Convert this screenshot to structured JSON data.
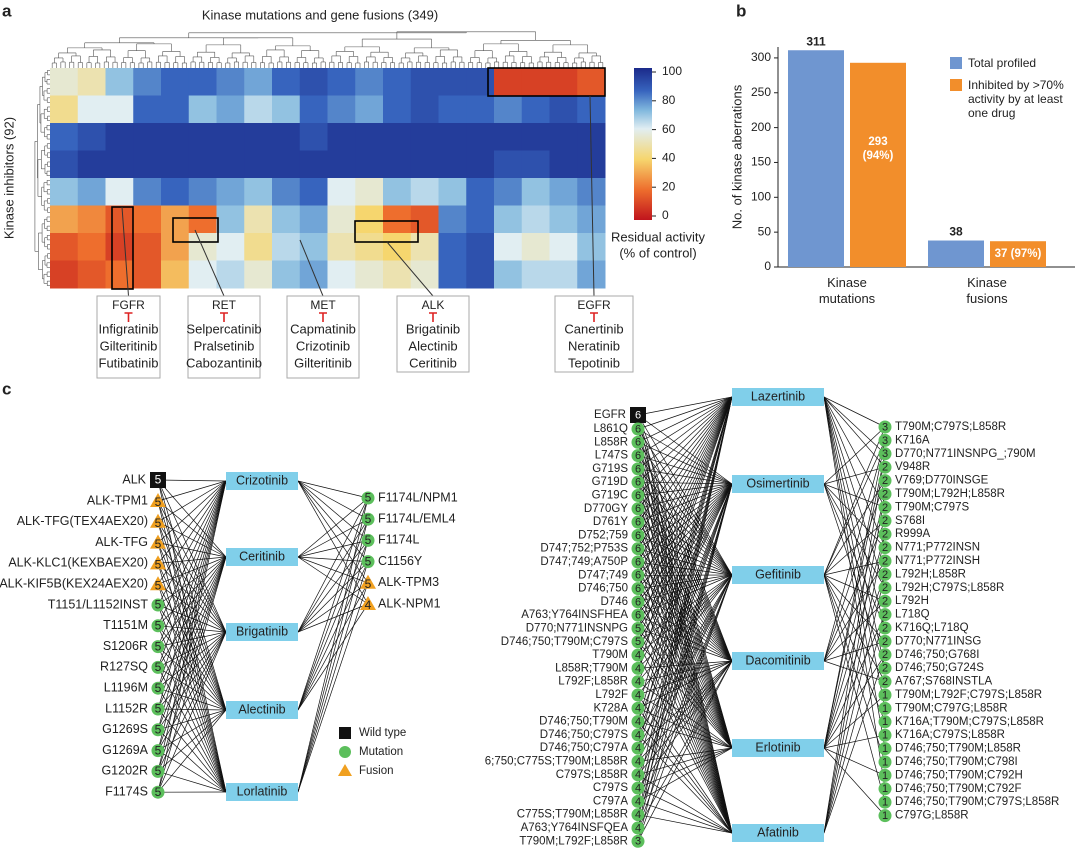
{
  "panel_labels": [
    "a",
    "b",
    "c"
  ],
  "heatmap": {
    "title": "Kinase mutations and gene fusions (349)",
    "y_label": "Kinase inhibitors (92)",
    "colorbar_lim": [
      0,
      100
    ],
    "colorbar_ticks": [
      0,
      20,
      40,
      60,
      80,
      100
    ],
    "colorbar_label": [
      "Residual activity",
      "(% of control)"
    ],
    "values": [
      [
        55,
        50,
        70,
        80,
        85,
        85,
        80,
        75,
        85,
        90,
        85,
        80,
        85,
        90,
        90,
        90,
        10,
        10,
        10,
        15
      ],
      [
        45,
        60,
        60,
        85,
        85,
        70,
        75,
        65,
        70,
        85,
        80,
        75,
        85,
        90,
        85,
        85,
        80,
        85,
        90,
        85
      ],
      [
        85,
        90,
        95,
        95,
        95,
        95,
        95,
        95,
        95,
        90,
        95,
        95,
        95,
        95,
        95,
        95,
        95,
        95,
        95,
        95
      ],
      [
        90,
        95,
        95,
        95,
        95,
        95,
        95,
        95,
        95,
        95,
        95,
        95,
        95,
        95,
        95,
        95,
        90,
        90,
        95,
        95
      ],
      [
        70,
        75,
        60,
        80,
        85,
        80,
        75,
        70,
        80,
        85,
        60,
        55,
        70,
        65,
        70,
        85,
        80,
        70,
        75,
        80
      ],
      [
        30,
        25,
        15,
        20,
        30,
        20,
        70,
        50,
        70,
        75,
        55,
        40,
        20,
        15,
        80,
        85,
        70,
        65,
        70,
        75
      ],
      [
        15,
        20,
        10,
        15,
        30,
        55,
        60,
        45,
        65,
        70,
        50,
        45,
        40,
        50,
        85,
        90,
        60,
        55,
        60,
        70
      ],
      [
        10,
        15,
        20,
        15,
        35,
        60,
        65,
        55,
        70,
        75,
        60,
        55,
        50,
        55,
        85,
        90,
        70,
        65,
        65,
        75
      ]
    ],
    "callouts": [
      {
        "target": "FGFR",
        "drugs": [
          "Infigratinib",
          "Gilteritinib",
          "Futibatinib"
        ]
      },
      {
        "target": "RET",
        "drugs": [
          "Selpercatinib",
          "Pralsetinib",
          "Cabozantinib"
        ]
      },
      {
        "target": "MET",
        "drugs": [
          "Capmatinib",
          "Crizotinib",
          "Gilteritinib"
        ]
      },
      {
        "target": "ALK",
        "drugs": [
          "Brigatinib",
          "Alectinib",
          "Ceritinib"
        ]
      },
      {
        "target": "EGFR",
        "drugs": [
          "Canertinib",
          "Neratinib",
          "Tepotinib"
        ]
      }
    ]
  },
  "chart_data": {
    "type": "bar",
    "ylabel": "No. of kinase aberrations",
    "categories": [
      "Kinase mutations",
      "Kinase fusions"
    ],
    "series": [
      {
        "name": "Total profiled",
        "color": "#6f96d0",
        "values": [
          311,
          38
        ]
      },
      {
        "name": "Inhibited by >70% activity by at least one drug",
        "color": "#f28e2b",
        "values": [
          293,
          37
        ],
        "value_labels": [
          "293 (94%)",
          "37 (97%)"
        ]
      }
    ],
    "ylim": [
      0,
      330
    ],
    "yticks": [
      0,
      50,
      100,
      150,
      200,
      250,
      300
    ]
  },
  "legend": [
    "Wild type",
    "Mutation",
    "Fusion"
  ],
  "networks": [
    {
      "wild_type": {
        "label": "ALK",
        "count": 5
      },
      "left": [
        {
          "label": "ALK-TPM1",
          "type": "fusion",
          "count": 5
        },
        {
          "label": "ALK-TFG(TEX4AEX20)",
          "type": "fusion",
          "count": 5
        },
        {
          "label": "ALK-TFG",
          "type": "fusion",
          "count": 5
        },
        {
          "label": "ALK-KLC1(KEXBAEX20)",
          "type": "fusion",
          "count": 5
        },
        {
          "label": "ALK-KIF5B(KEX24AEX20)",
          "type": "fusion",
          "count": 5
        },
        {
          "label": "T1151/L1152INST",
          "type": "mutation",
          "count": 5
        },
        {
          "label": "T1151M",
          "type": "mutation",
          "count": 5
        },
        {
          "label": "S1206R",
          "type": "mutation",
          "count": 5
        },
        {
          "label": "R127SQ",
          "type": "mutation",
          "count": 5
        },
        {
          "label": "L1196M",
          "type": "mutation",
          "count": 5
        },
        {
          "label": "L1152R",
          "type": "mutation",
          "count": 5
        },
        {
          "label": "G1269S",
          "type": "mutation",
          "count": 5
        },
        {
          "label": "G1269A",
          "type": "mutation",
          "count": 5
        },
        {
          "label": "G1202R",
          "type": "mutation",
          "count": 5
        },
        {
          "label": "F1174S",
          "type": "mutation",
          "count": 5
        }
      ],
      "drugs": [
        "Crizotinib",
        "Ceritinib",
        "Brigatinib",
        "Alectinib",
        "Lorlatinib"
      ],
      "right": [
        {
          "label": "F1174L/NPM1",
          "type": "mutation",
          "count": 5
        },
        {
          "label": "F1174L/EML4",
          "type": "mutation",
          "count": 5
        },
        {
          "label": "F1174L",
          "type": "mutation",
          "count": 5
        },
        {
          "label": "C1156Y",
          "type": "mutation",
          "count": 5
        },
        {
          "label": "ALK-TPM3",
          "type": "fusion",
          "count": 5
        },
        {
          "label": "ALK-NPM1",
          "type": "fusion",
          "count": 4
        }
      ]
    },
    {
      "wild_type": {
        "label": "EGFR",
        "count": 6
      },
      "left": [
        {
          "label": "L861Q",
          "type": "mutation",
          "count": 6
        },
        {
          "label": "L858R",
          "type": "mutation",
          "count": 6
        },
        {
          "label": "L747S",
          "type": "mutation",
          "count": 6
        },
        {
          "label": "G719S",
          "type": "mutation",
          "count": 6
        },
        {
          "label": "G719D",
          "type": "mutation",
          "count": 6
        },
        {
          "label": "G719C",
          "type": "mutation",
          "count": 6
        },
        {
          "label": "D770GY",
          "type": "mutation",
          "count": 6
        },
        {
          "label": "D761Y",
          "type": "mutation",
          "count": 6
        },
        {
          "label": "D752;759",
          "type": "mutation",
          "count": 6
        },
        {
          "label": "D747;752;P753S",
          "type": "mutation",
          "count": 6
        },
        {
          "label": "D747;749;A750P",
          "type": "mutation",
          "count": 6
        },
        {
          "label": "D747;749",
          "type": "mutation",
          "count": 6
        },
        {
          "label": "D746;750",
          "type": "mutation",
          "count": 6
        },
        {
          "label": "D746",
          "type": "mutation",
          "count": 6
        },
        {
          "label": "A763;Y764INSFHEA",
          "type": "mutation",
          "count": 6
        },
        {
          "label": "D770;N771INSNPG",
          "type": "mutation",
          "count": 5
        },
        {
          "label": "D746;750;T790M;C797S",
          "type": "mutation",
          "count": 5
        },
        {
          "label": "T790M",
          "type": "mutation",
          "count": 4
        },
        {
          "label": "L858R;T790M",
          "type": "mutation",
          "count": 4
        },
        {
          "label": "L792F;L858R",
          "type": "mutation",
          "count": 4
        },
        {
          "label": "L792F",
          "type": "mutation",
          "count": 4
        },
        {
          "label": "K728A",
          "type": "mutation",
          "count": 4
        },
        {
          "label": "D746;750;T790M",
          "type": "mutation",
          "count": 4
        },
        {
          "label": "D746;750;C797S",
          "type": "mutation",
          "count": 4
        },
        {
          "label": "D746;750;C797A",
          "type": "mutation",
          "count": 4
        },
        {
          "label": "6;750;C775S;T790M;L858R",
          "type": "mutation",
          "count": 4
        },
        {
          "label": "C797S;L858R",
          "type": "mutation",
          "count": 4
        },
        {
          "label": "C797S",
          "type": "mutation",
          "count": 4
        },
        {
          "label": "C797A",
          "type": "mutation",
          "count": 4
        },
        {
          "label": "C775S;T790M;L858R",
          "type": "mutation",
          "count": 4
        },
        {
          "label": "A763;Y764INSFQEA",
          "type": "mutation",
          "count": 4
        },
        {
          "label": "T790M;L792F;L858R",
          "type": "mutation",
          "count": 3
        }
      ],
      "drugs": [
        "Lazertinib",
        "Osimertinib",
        "Gefitinib",
        "Dacomitinib",
        "Erlotinib",
        "Afatinib"
      ],
      "right": [
        {
          "label": "T790M;C797S;L858R",
          "type": "mutation",
          "count": 3
        },
        {
          "label": "K716A",
          "type": "mutation",
          "count": 3
        },
        {
          "label": "D770;N771INSNPG_;790M",
          "type": "mutation",
          "count": 3
        },
        {
          "label": "V948R",
          "type": "mutation",
          "count": 2
        },
        {
          "label": "V769;D770INSGE",
          "type": "mutation",
          "count": 2
        },
        {
          "label": "T790M;L792H;L858R",
          "type": "mutation",
          "count": 2
        },
        {
          "label": "T790M;C797S",
          "type": "mutation",
          "count": 2
        },
        {
          "label": "S768I",
          "type": "mutation",
          "count": 2
        },
        {
          "label": "R999A",
          "type": "mutation",
          "count": 2
        },
        {
          "label": "N771;P772INSN",
          "type": "mutation",
          "count": 2
        },
        {
          "label": "N771;P772INSH",
          "type": "mutation",
          "count": 2
        },
        {
          "label": "L792H;L858R",
          "type": "mutation",
          "count": 2
        },
        {
          "label": "L792H;C797S;L858R",
          "type": "mutation",
          "count": 2
        },
        {
          "label": "L792H",
          "type": "mutation",
          "count": 2
        },
        {
          "label": "L718Q",
          "type": "mutation",
          "count": 2
        },
        {
          "label": "K716Q;L718Q",
          "type": "mutation",
          "count": 2
        },
        {
          "label": "D770;N771INSG",
          "type": "mutation",
          "count": 2
        },
        {
          "label": "D746;750;G768I",
          "type": "mutation",
          "count": 2
        },
        {
          "label": "D746;750;G724S",
          "type": "mutation",
          "count": 2
        },
        {
          "label": "A767;S768INSTLA",
          "type": "mutation",
          "count": 2
        },
        {
          "label": "T790M;L792F;C797S;L858R",
          "type": "mutation",
          "count": 1
        },
        {
          "label": "T790M;C797G;L858R",
          "type": "mutation",
          "count": 1
        },
        {
          "label": "K716A;T790M;C797S;L858R",
          "type": "mutation",
          "count": 1
        },
        {
          "label": "K716A;C797S;L858R",
          "type": "mutation",
          "count": 1
        },
        {
          "label": "D746;750;T790M;L858R",
          "type": "mutation",
          "count": 1
        },
        {
          "label": "D746;750;T790M;C798I",
          "type": "mutation",
          "count": 1
        },
        {
          "label": "D746;750;T790M;C792H",
          "type": "mutation",
          "count": 1
        },
        {
          "label": "D746;750;T790M;C792F",
          "type": "mutation",
          "count": 1
        },
        {
          "label": "D746;750;T790M;C797S;L858R",
          "type": "mutation",
          "count": 1
        },
        {
          "label": "C797G;L858R",
          "type": "mutation",
          "count": 1
        }
      ]
    }
  ]
}
